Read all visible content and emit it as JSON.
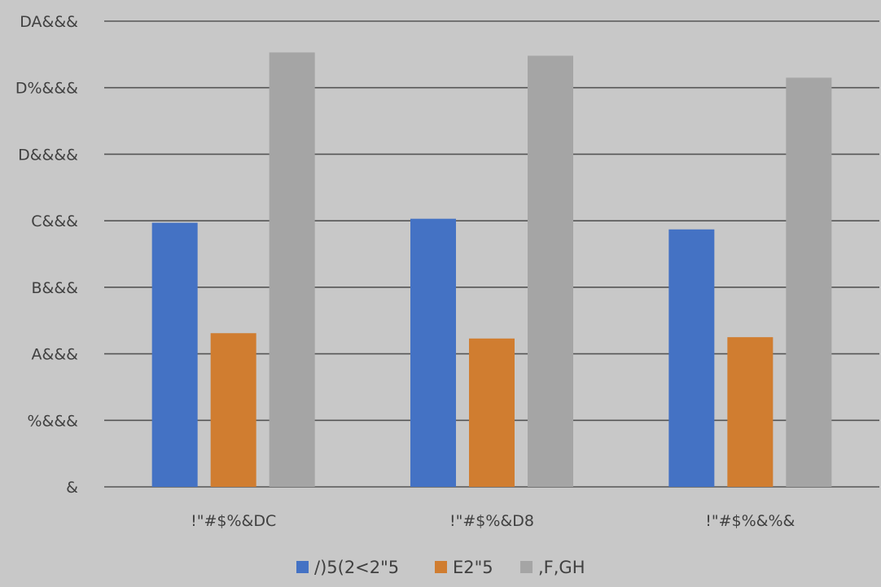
{
  "chart_data": {
    "type": "bar",
    "categories": [
      "!\"#$%&DC",
      "!\"#$%&D8",
      "!\"#$%&%&"
    ],
    "series": [
      {
        "name": "/)5(2<2\"5",
        "color": "#4472c4",
        "values": [
          3970,
          4030,
          3870
        ]
      },
      {
        "name": "E2\"5",
        "color": "#d07d30",
        "values": [
          2310,
          2230,
          2250
        ]
      },
      {
        "name": ",F,GH",
        "color": "#a5a5a5",
        "values": [
          6530,
          6480,
          6150
        ]
      }
    ],
    "ylim": [
      0,
      7000
    ],
    "yticks": [
      0,
      1000,
      2000,
      3000,
      4000,
      5000,
      6000,
      7000
    ],
    "ytick_labels": [
      "&",
      "%&&&",
      "A&&&",
      "B&&&",
      "C&&&",
      "D&&&&",
      "D%&&&",
      "DA&&&"
    ],
    "grid": true,
    "legend_position": "bottom",
    "title": "",
    "xlabel": "",
    "ylabel": ""
  }
}
